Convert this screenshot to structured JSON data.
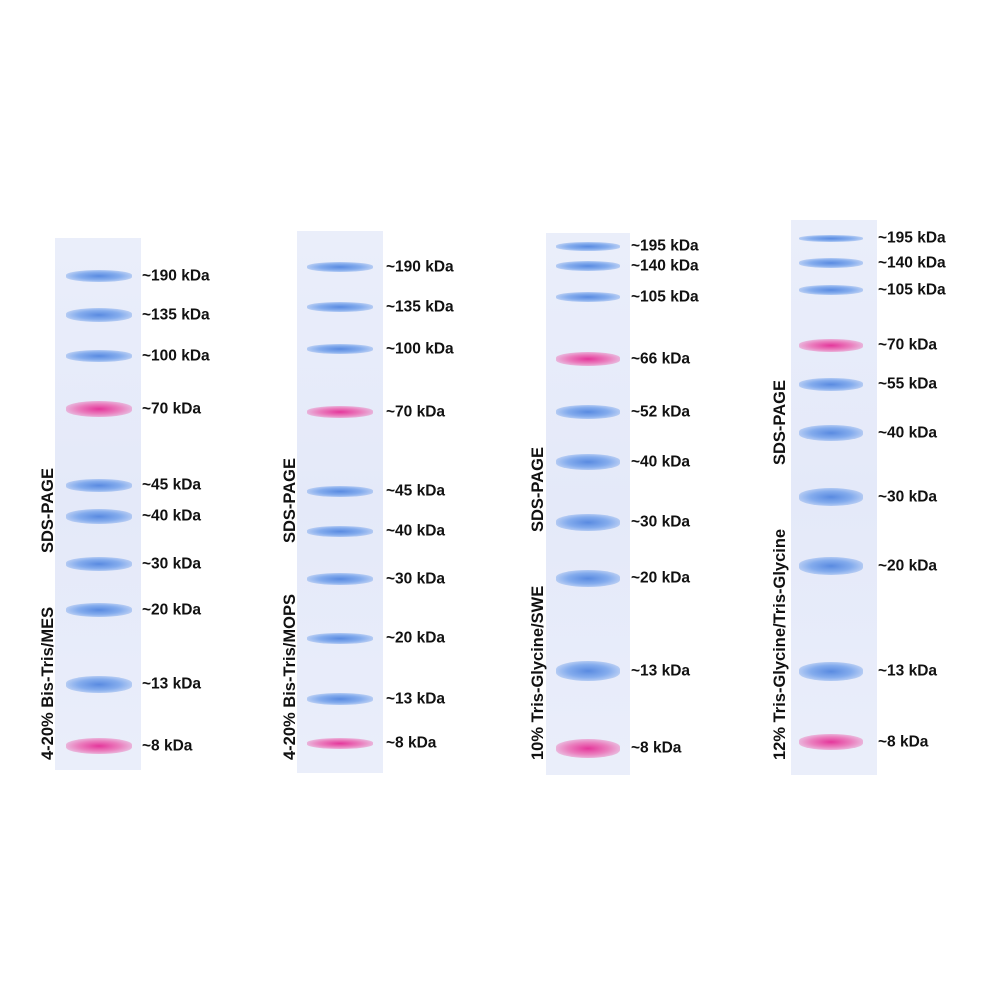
{
  "gels": [
    {
      "condition": "4-20% Bis-Tris/MES",
      "method": "SDS-PAGE",
      "bands": [
        {
          "label": "~190 kDa",
          "color": "blue"
        },
        {
          "label": "~135 kDa",
          "color": "blue"
        },
        {
          "label": "~100 kDa",
          "color": "blue"
        },
        {
          "label": "~70 kDa",
          "color": "pink"
        },
        {
          "label": "~45 kDa",
          "color": "blue"
        },
        {
          "label": "~40 kDa",
          "color": "blue"
        },
        {
          "label": "~30 kDa",
          "color": "blue"
        },
        {
          "label": "~20 kDa",
          "color": "blue"
        },
        {
          "label": "~13 kDa",
          "color": "blue"
        },
        {
          "label": "~8 kDa",
          "color": "pink"
        }
      ]
    },
    {
      "condition": "4-20% Bis-Tris/MOPS",
      "method": "SDS-PAGE",
      "bands": [
        {
          "label": "~190 kDa",
          "color": "blue"
        },
        {
          "label": "~135 kDa",
          "color": "blue"
        },
        {
          "label": "~100 kDa",
          "color": "blue"
        },
        {
          "label": "~70 kDa",
          "color": "pink"
        },
        {
          "label": "~45 kDa",
          "color": "blue"
        },
        {
          "label": "~40 kDa",
          "color": "blue"
        },
        {
          "label": "~30 kDa",
          "color": "blue"
        },
        {
          "label": "~20 kDa",
          "color": "blue"
        },
        {
          "label": "~13 kDa",
          "color": "blue"
        },
        {
          "label": "~8 kDa",
          "color": "pink"
        }
      ]
    },
    {
      "condition": "10% Tris-Glycine/SWE",
      "method": "SDS-PAGE",
      "bands": [
        {
          "label": "~195 kDa",
          "color": "blue"
        },
        {
          "label": "~140 kDa",
          "color": "blue"
        },
        {
          "label": "~105 kDa",
          "color": "blue"
        },
        {
          "label": "~66 kDa",
          "color": "pink"
        },
        {
          "label": "~52 kDa",
          "color": "blue"
        },
        {
          "label": "~40 kDa",
          "color": "blue"
        },
        {
          "label": "~30 kDa",
          "color": "blue"
        },
        {
          "label": "~20 kDa",
          "color": "blue"
        },
        {
          "label": "~13 kDa",
          "color": "blue"
        },
        {
          "label": "~8 kDa",
          "color": "pink"
        }
      ]
    },
    {
      "condition": "12% Tris-Glycine/Tris-Glycine",
      "method": "SDS-PAGE",
      "bands": [
        {
          "label": "~195 kDa",
          "color": "blue"
        },
        {
          "label": "~140 kDa",
          "color": "blue"
        },
        {
          "label": "~105 kDa",
          "color": "blue"
        },
        {
          "label": "~70 kDa",
          "color": "pink"
        },
        {
          "label": "~55 kDa",
          "color": "blue"
        },
        {
          "label": "~40 kDa",
          "color": "blue"
        },
        {
          "label": "~30 kDa",
          "color": "blue"
        },
        {
          "label": "~20 kDa",
          "color": "blue"
        },
        {
          "label": "~13 kDa",
          "color": "blue"
        },
        {
          "label": "~8 kDa",
          "color": "pink"
        }
      ]
    }
  ]
}
